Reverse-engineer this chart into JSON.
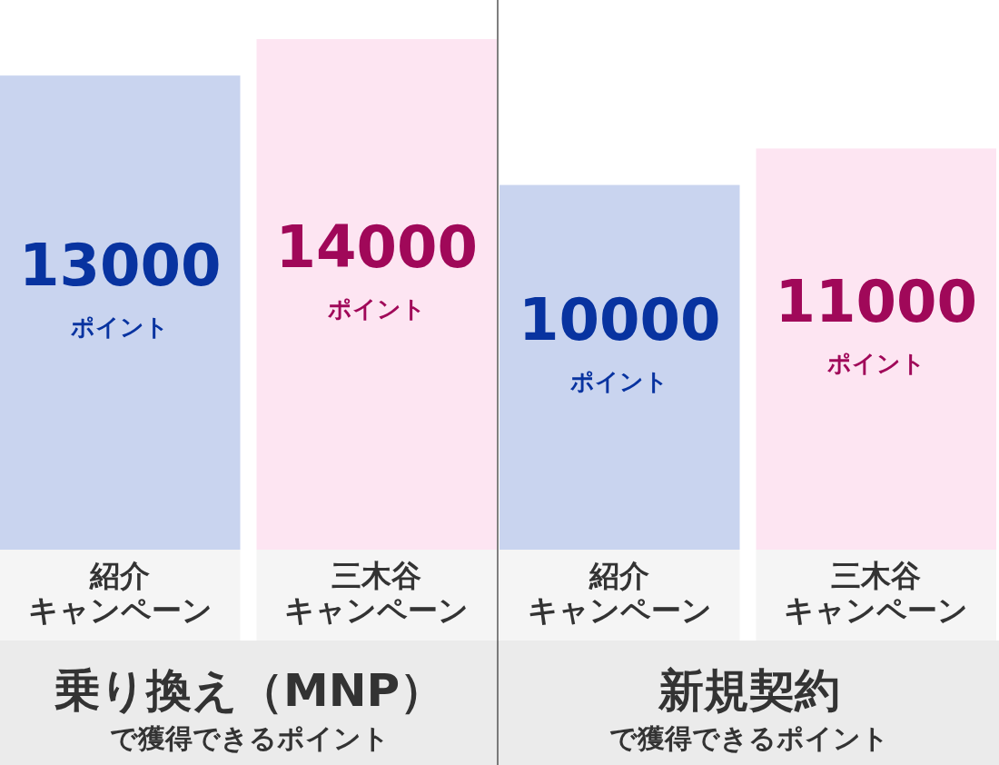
{
  "chart_data": [
    {
      "type": "bar",
      "title": "乗り換え（MNP）",
      "subtitle": "で獲得できるポイント",
      "categories": [
        "紹介キャンペーン",
        "三木谷キャンペーン"
      ],
      "values": [
        13000,
        14000
      ],
      "colors": [
        "#c9d4ef",
        "#fde5f2"
      ],
      "value_labels": [
        "13000ポイント",
        "14000ポイント"
      ]
    },
    {
      "type": "bar",
      "title": "新規契約",
      "subtitle": "で獲得できるポイント",
      "categories": [
        "紹介キャンペーン",
        "三木谷キャンペーン"
      ],
      "values": [
        10000,
        11000
      ],
      "colors": [
        "#c9d4ef",
        "#fde5f2"
      ],
      "value_labels": [
        "10000ポイント",
        "11000ポイント"
      ]
    }
  ]
}
